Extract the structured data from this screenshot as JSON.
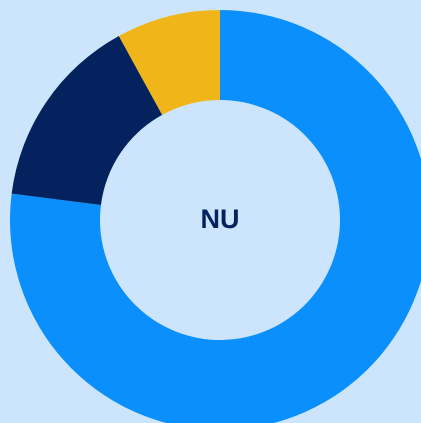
{
  "chart_data": {
    "type": "donut",
    "center_label": "NU",
    "values": [
      77,
      15,
      8
    ],
    "colors": [
      "#0a8ffc",
      "#04235e",
      "#f0b619"
    ],
    "background": "#cce5fc",
    "label_color": "#04235e"
  }
}
